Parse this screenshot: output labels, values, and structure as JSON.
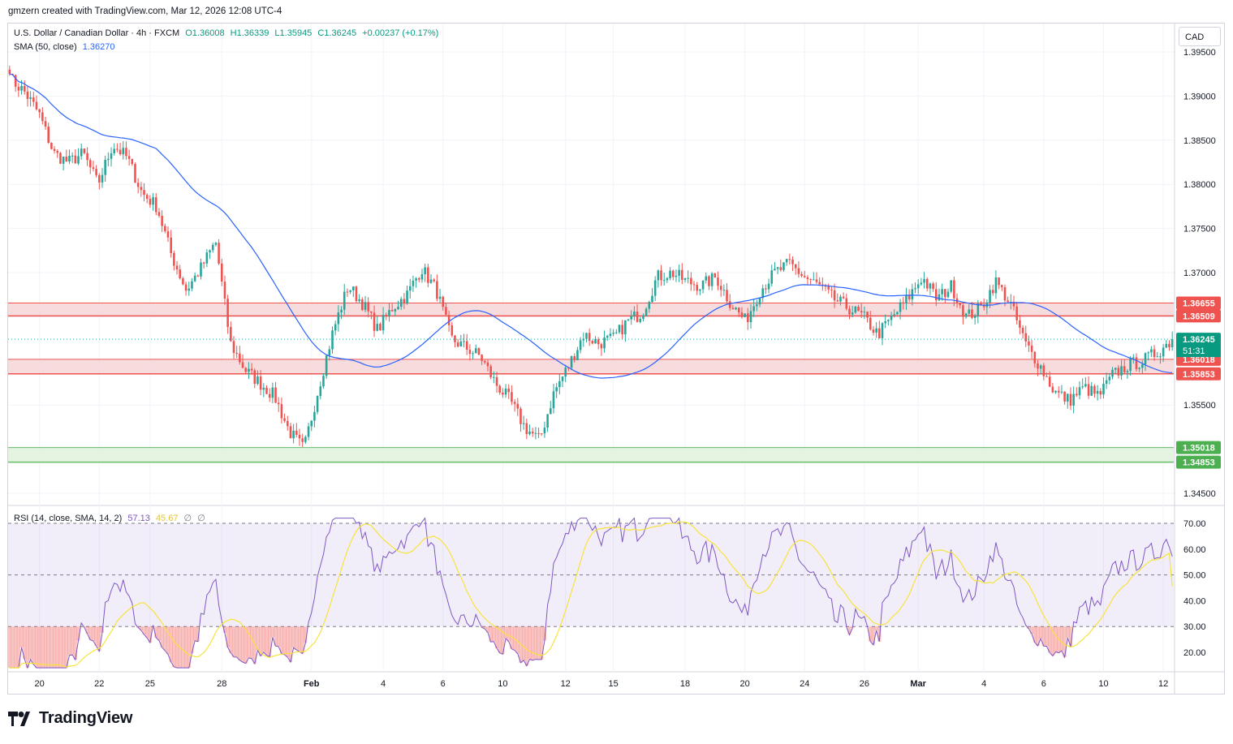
{
  "header": {
    "attribution": "gmzern created with TradingView.com, Mar 12, 2026 12:08 UTC-4"
  },
  "main_legend": {
    "symbol": "U.S. Dollar / Canadian Dollar · 4h · FXCM",
    "open": "O1.36008",
    "high": "H1.36339",
    "low": "L1.35945",
    "close": "C1.36245",
    "change": "+0.00237 (+0.17%)",
    "sma_label": "SMA (50, close)",
    "sma_value": "1.36270"
  },
  "rsi_legend": {
    "label": "RSI (14, close, SMA, 14, 2)",
    "rsi_value": "57.13",
    "rsi_sma_value": "45.67",
    "extra1": "∅",
    "extra2": "∅"
  },
  "currency_button": "CAD",
  "footer": {
    "brand": "TradingView"
  },
  "colors": {
    "up": "#26a69a",
    "down": "#ef5350",
    "sma": "#2962ff",
    "rsi": "#7e57c2",
    "rsi_ma": "#f7e33b",
    "resistance_zone": "#f6d6d8",
    "support_zone": "#dff2dc"
  },
  "chart_data": [
    {
      "type": "candlestick",
      "symbol": "USDCAD",
      "timeframe": "4h",
      "y_ticks": [
        "1.39500",
        "1.39000",
        "1.38500",
        "1.38000",
        "1.37500",
        "1.37000",
        "1.35500",
        "1.34500"
      ],
      "ylim": [
        1.3435,
        1.3985
      ],
      "x_labels": [
        "20",
        "22",
        "25",
        "28",
        "Feb",
        "4",
        "6",
        "10",
        "12",
        "15",
        "18",
        "20",
        "24",
        "26",
        "Mar",
        "4",
        "6",
        "10",
        "12"
      ],
      "x_label_index": [
        10,
        30,
        47,
        71,
        101,
        125,
        145,
        165,
        186,
        202,
        226,
        246,
        266,
        286,
        304,
        326,
        346,
        366,
        386
      ],
      "bar_count": 390,
      "zones": [
        {
          "name": "resistance",
          "top": 1.36655,
          "bottom": 1.36509,
          "top_label": "1.36655",
          "bottom_label": "1.36509",
          "color": "#ef5350"
        },
        {
          "name": "resistance",
          "top": 1.36018,
          "bottom": 1.35853,
          "top_label": "1.36018",
          "bottom_label": "1.35853",
          "color": "#ef5350"
        },
        {
          "name": "support",
          "top": 1.35018,
          "bottom": 1.34853,
          "top_label": "1.35018",
          "bottom_label": "1.34853",
          "color": "#4caf50"
        }
      ],
      "last_price": 1.36245,
      "last_price_label": "1.36245",
      "countdown": "51:31",
      "closes_approx": [
        1.392,
        1.3905,
        1.388,
        1.3835,
        1.3825,
        1.3835,
        1.38,
        1.3845,
        1.383,
        1.379,
        1.3775,
        1.372,
        1.368,
        1.3705,
        1.3735,
        1.362,
        1.359,
        1.3575,
        1.356,
        1.352,
        1.35,
        1.357,
        1.3635,
        1.3685,
        1.3665,
        1.3635,
        1.366,
        1.3675,
        1.3705,
        1.368,
        1.3625,
        1.3615,
        1.3605,
        1.3575,
        1.3555,
        1.3525,
        1.351,
        1.3565,
        1.3595,
        1.363,
        1.362,
        1.3625,
        1.3645,
        1.3655,
        1.3695,
        1.37,
        1.369,
        1.3685,
        1.3695,
        1.3665,
        1.3645,
        1.368,
        1.37,
        1.371,
        1.3695,
        1.3685,
        1.367,
        1.366,
        1.365,
        1.363,
        1.365,
        1.367,
        1.3695,
        1.367,
        1.3685,
        1.365,
        1.366,
        1.369,
        1.3665,
        1.362,
        1.3595,
        1.3565,
        1.3555,
        1.357,
        1.356,
        1.3585,
        1.3595,
        1.36,
        1.361,
        1.3624
      ],
      "sma": {
        "name": "SMA (50, close)",
        "last": 1.3627
      },
      "rsi": {
        "name": "RSI (14, close, SMA, 14, 2)",
        "levels": [
          30,
          50,
          70
        ],
        "y_ticks": [
          "70.00",
          "60.00",
          "50.00",
          "40.00",
          "30.00",
          "20.00"
        ],
        "ylim": [
          12,
          73
        ],
        "last": 57.13,
        "ma_last": 45.67
      }
    }
  ]
}
